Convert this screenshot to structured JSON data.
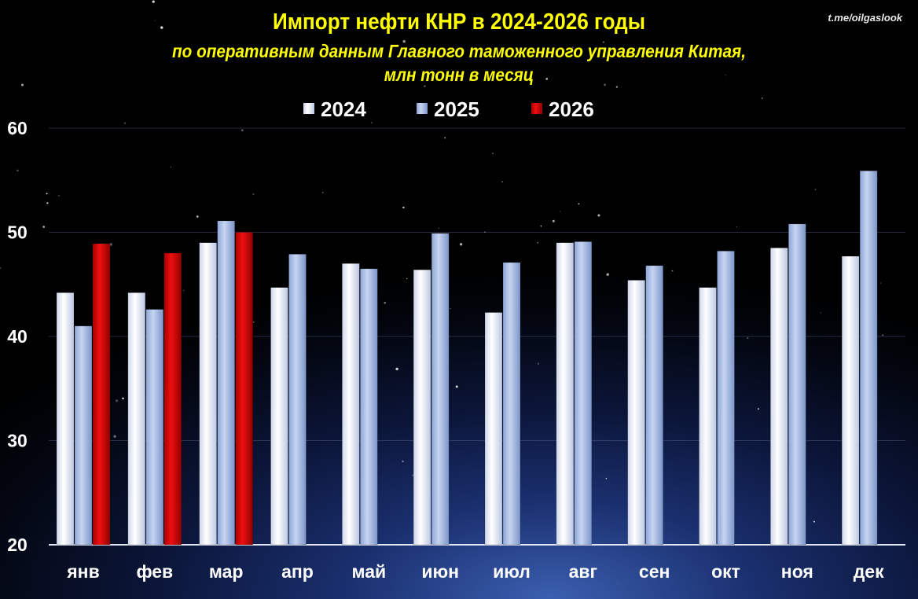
{
  "header": {
    "title": "Импорт нефти КНР в 2024-2026  годы",
    "subtitle_line1": "по оперативным данным Главного таможенного  управления Китая,",
    "subtitle_line2": "млн тонн в месяц",
    "source": "t.me/oilgaslook"
  },
  "colors": {
    "s2024": "#e8edf7",
    "s2025": "#a9bfe6",
    "s2026": "#c80000"
  },
  "chart_data": {
    "type": "bar",
    "title": "Импорт нефти КНР в 2024-2026  годы",
    "ylim": [
      20,
      60
    ],
    "yticks": [
      20,
      30,
      40,
      50,
      60
    ],
    "grid": true,
    "legend_position": "top",
    "categories": [
      "янв",
      "фев",
      "мар",
      "апр",
      "май",
      "июн",
      "июл",
      "авг",
      "сен",
      "окт",
      "ноя",
      "дек"
    ],
    "series": [
      {
        "name": "2024",
        "values": [
          44.2,
          44.2,
          49.0,
          44.7,
          47.0,
          46.4,
          42.3,
          49.0,
          45.4,
          44.7,
          48.5,
          47.7
        ]
      },
      {
        "name": "2025",
        "values": [
          41.0,
          42.6,
          51.1,
          47.9,
          46.5,
          49.9,
          47.1,
          49.1,
          46.8,
          48.2,
          50.8,
          55.9
        ]
      },
      {
        "name": "2026",
        "values": [
          48.9,
          48.0,
          50.0,
          null,
          null,
          null,
          null,
          null,
          null,
          null,
          null,
          null
        ]
      }
    ]
  }
}
